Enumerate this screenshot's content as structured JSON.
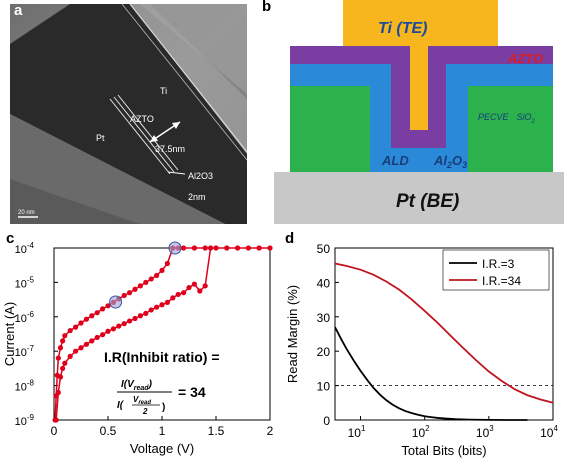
{
  "panel_a": {
    "label": "a",
    "texts": {
      "ti": "Ti",
      "pt": "Pt",
      "azto": "AZTO",
      "thick": "37.5nm",
      "al2o3": "Al2O3",
      "nm2": "2nm",
      "scale": "20 nm"
    }
  },
  "panel_b": {
    "label": "b",
    "texts": {
      "ti_te": "Ti (TE)",
      "azto": "AZTO",
      "pecvd": "PECVE",
      "sio2": "SiO",
      "sio2_sub": "2",
      "ald": "ALD",
      "al": "Al",
      "al_sub1": "2",
      "o": "O",
      "o_sub": "3",
      "pt_be": "Pt (BE)"
    },
    "colors": {
      "ti": "#f7b61d",
      "azto": "#7a3ea3",
      "al2o3": "#2a8ad7",
      "sio2": "#2bb24c",
      "pt": "#c8c8c8",
      "azto_text": "#d31f26",
      "ti_text": "#1a4c9c"
    }
  },
  "panel_c": {
    "label": "c",
    "formula": {
      "title": "I.R(Inhibit ratio) =",
      "num": "I(V",
      "num_sub": "read",
      "den": "I(",
      "den_frac_num": "V",
      "den_frac_num_sub": "read",
      "den_frac_den": "2",
      "result": "= 34"
    },
    "chart_data": {
      "type": "line",
      "xlabel": "Voltage (V)",
      "ylabel": "Current (A)",
      "xlim": [
        0,
        2
      ],
      "ylim_exp": [
        -9,
        -4
      ],
      "x_ticks": [
        "0",
        "0.5",
        "1",
        "1.5",
        "2"
      ],
      "x_tick_values": [
        0,
        0.5,
        1,
        1.5,
        2
      ],
      "y_ticks": [
        {
          "base": "10",
          "exp": "-9",
          "value": -9
        },
        {
          "base": "10",
          "exp": "-8",
          "value": -8
        },
        {
          "base": "10",
          "exp": "-7",
          "value": -7
        },
        {
          "base": "10",
          "exp": "-6",
          "value": -6
        },
        {
          "base": "10",
          "exp": "-5",
          "value": -5
        },
        {
          "base": "10",
          "exp": "-4",
          "value": -4
        }
      ],
      "color": "#e0001b",
      "series": [
        {
          "x": [
            0.01,
            0.02,
            0.03,
            0.04,
            0.06,
            0.08,
            0.1,
            0.15,
            0.2,
            0.25,
            0.3,
            0.35,
            0.4,
            0.45,
            0.5,
            0.55,
            0.6,
            0.65,
            0.7,
            0.75,
            0.8,
            0.85,
            0.9,
            0.95,
            1.0,
            1.05,
            1.1,
            1.15,
            1.2,
            1.3,
            1.4,
            1.5,
            1.6,
            1.7,
            1.8,
            1.9,
            2.0
          ],
          "log10y": [
            -9.0,
            -8.3,
            -7.7,
            -7.2,
            -6.9,
            -6.7,
            -6.55,
            -6.4,
            -6.3,
            -6.18,
            -6.07,
            -5.97,
            -5.88,
            -5.77,
            -5.68,
            -5.58,
            -5.48,
            -5.38,
            -5.3,
            -5.2,
            -5.1,
            -5.0,
            -4.9,
            -4.8,
            -4.65,
            -4.45,
            -4.0,
            -4.0,
            -4.0,
            -4.0,
            -4.0,
            -4.0,
            -4.0,
            -4.0,
            -4.0,
            -4.0,
            -4.0
          ]
        },
        {
          "x": [
            0.02,
            0.04,
            0.06,
            0.08,
            0.1,
            0.15,
            0.2,
            0.25,
            0.3,
            0.35,
            0.4,
            0.45,
            0.5,
            0.55,
            0.6,
            0.65,
            0.7,
            0.75,
            0.8,
            0.85,
            0.9,
            0.95,
            1.0,
            1.05,
            1.1,
            1.15,
            1.2,
            1.25,
            1.3,
            1.35,
            1.4,
            1.45
          ],
          "log10y": [
            -9.0,
            -8.2,
            -7.75,
            -7.5,
            -7.35,
            -7.15,
            -7.0,
            -6.9,
            -6.8,
            -6.7,
            -6.6,
            -6.52,
            -6.42,
            -6.35,
            -6.27,
            -6.2,
            -6.12,
            -6.05,
            -5.97,
            -5.9,
            -5.8,
            -5.72,
            -5.65,
            -5.58,
            -5.45,
            -5.35,
            -5.3,
            -5.15,
            -5.05,
            -5.25,
            -5.1,
            -4.0
          ]
        }
      ],
      "circles": [
        {
          "x": 0.57,
          "log10y": -5.57
        },
        {
          "x": 1.12,
          "log10y": -4.0
        }
      ]
    }
  },
  "panel_d": {
    "label": "d",
    "chart_data": {
      "type": "line",
      "xlabel": "Total Bits (bits)",
      "ylabel": "Read Margin (%)",
      "xscale": "log",
      "xlim": [
        4,
        10000
      ],
      "ylim": [
        0,
        50
      ],
      "x_ticks": [
        {
          "base": "10",
          "exp": "1",
          "value": 10
        },
        {
          "base": "10",
          "exp": "2",
          "value": 100
        },
        {
          "base": "10",
          "exp": "3",
          "value": 1000
        },
        {
          "base": "10",
          "exp": "4",
          "value": 10000
        }
      ],
      "y_ticks": [
        0,
        10,
        20,
        30,
        40,
        50
      ],
      "dashed_y": 10,
      "legend": "top-right",
      "series": [
        {
          "name": "I.R.=3",
          "color": "#000000",
          "x": [
            4,
            5,
            6,
            8,
            10,
            13,
            16,
            20,
            25,
            32,
            40,
            50,
            63,
            80,
            100,
            130,
            160,
            200,
            300,
            500,
            1000,
            2000,
            4000
          ],
          "y": [
            27,
            23.5,
            20.8,
            17,
            14.3,
            11.4,
            9.3,
            7.4,
            5.8,
            4.4,
            3.4,
            2.6,
            2.0,
            1.5,
            1.1,
            0.8,
            0.6,
            0.45,
            0.25,
            0.12,
            0.04,
            0.01,
            0.0
          ]
        },
        {
          "name": "I.R.=34",
          "color": "#c0141f",
          "x": [
            4,
            6,
            10,
            16,
            25,
            40,
            63,
            100,
            160,
            250,
            400,
            630,
            1000,
            1600,
            2500,
            4000,
            6300,
            10000
          ],
          "y": [
            45.5,
            44.8,
            43.7,
            42.2,
            40.3,
            37.9,
            35.0,
            31.7,
            28.2,
            24.6,
            20.9,
            17.4,
            14.1,
            11.3,
            9.0,
            7.2,
            6.0,
            5.0
          ]
        }
      ]
    }
  }
}
